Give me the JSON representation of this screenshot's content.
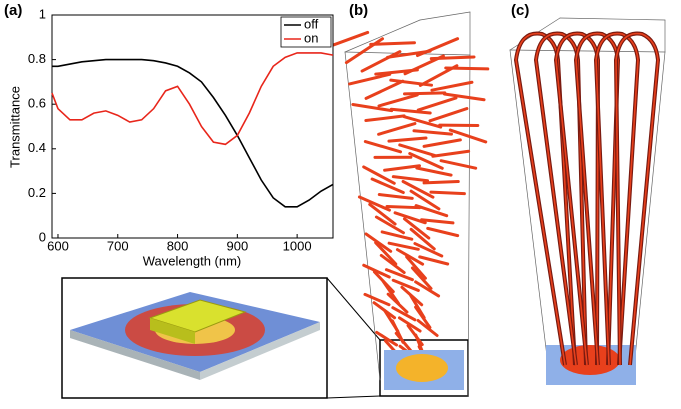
{
  "chart_data": {
    "type": "line",
    "panel_label": "(a)",
    "xlabel": "Wavelength (nm)",
    "ylabel": "Transmittance",
    "x": [
      590,
      600,
      620,
      640,
      660,
      680,
      700,
      720,
      740,
      760,
      780,
      800,
      820,
      840,
      860,
      880,
      900,
      920,
      940,
      960,
      980,
      1000,
      1020,
      1040,
      1060
    ],
    "series": [
      {
        "name": "off",
        "color": "#000000",
        "values": [
          0.77,
          0.77,
          0.78,
          0.79,
          0.795,
          0.8,
          0.8,
          0.8,
          0.8,
          0.795,
          0.785,
          0.77,
          0.74,
          0.7,
          0.63,
          0.55,
          0.46,
          0.36,
          0.26,
          0.18,
          0.14,
          0.14,
          0.17,
          0.21,
          0.24
        ]
      },
      {
        "name": "on",
        "color": "#e8261b",
        "values": [
          0.65,
          0.58,
          0.53,
          0.53,
          0.56,
          0.57,
          0.55,
          0.52,
          0.53,
          0.58,
          0.66,
          0.68,
          0.6,
          0.5,
          0.43,
          0.42,
          0.46,
          0.56,
          0.68,
          0.77,
          0.81,
          0.83,
          0.83,
          0.83,
          0.82
        ]
      }
    ],
    "xlim": [
      590,
      1060
    ],
    "xticks": [
      600,
      700,
      800,
      900,
      1000
    ],
    "ylim": [
      0,
      1
    ],
    "yticks": [
      0,
      0.2,
      0.4,
      0.6,
      0.8,
      1
    ],
    "legend": "upper-right"
  },
  "panels": {
    "b": "(b)",
    "c": "(c)"
  }
}
